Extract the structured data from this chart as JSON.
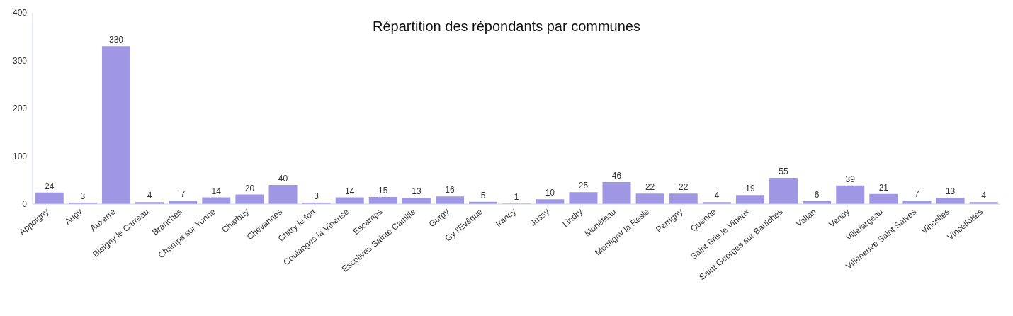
{
  "chart_data": {
    "type": "bar",
    "title": "Répartition des répondants par communes",
    "categories": [
      "Appoigny",
      "Augy",
      "Auxerre",
      "Bleigny le Carreau",
      "Branches",
      "Champs sur Yonne",
      "Charbuy",
      "Chevannes",
      "Chitry le fort",
      "Coulanges la Vineuse",
      "Escamps",
      "Escolives Sainte Camille",
      "Gurgy",
      "Gy l'Evêque",
      "Irancy",
      "Jussy",
      "Lindry",
      "Monéteau",
      "Montigny la Resle",
      "Perrigny",
      "Quenne",
      "Saint Bris le Vineux",
      "Saint Georges sur Baulches",
      "Vallan",
      "Venoy",
      "Villefargeau",
      "Villeneuve Saint Salves",
      "Vincelles",
      "Vincellottes"
    ],
    "values": [
      24,
      3,
      330,
      4,
      7,
      14,
      20,
      40,
      3,
      14,
      15,
      13,
      16,
      5,
      1,
      10,
      25,
      46,
      22,
      22,
      4,
      19,
      55,
      6,
      39,
      21,
      7,
      13,
      4
    ],
    "color": "#9f97e3",
    "ylim": [
      0,
      400
    ],
    "yticks": [
      0,
      100,
      200,
      300,
      400
    ],
    "grid": false,
    "legend": false,
    "data_labels": true
  }
}
